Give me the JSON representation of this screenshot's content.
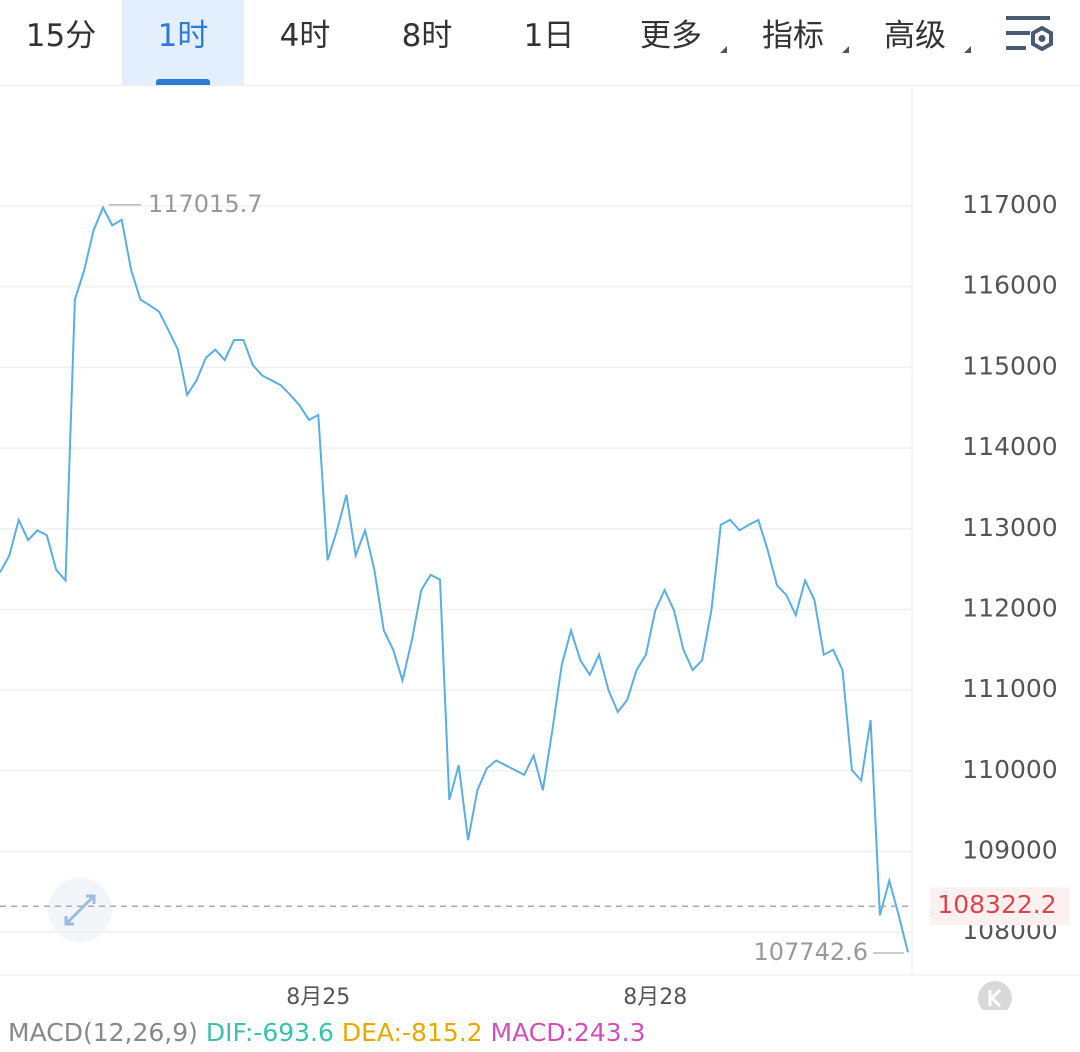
{
  "tabs": [
    "15分",
    "1时",
    "4时",
    "8时",
    "1日",
    "更多",
    "指标",
    "高级"
  ],
  "active_tab": 1,
  "chart_data": {
    "type": "line",
    "categories": [
      null,
      null,
      null,
      null,
      null,
      null,
      null,
      null,
      null,
      null,
      null,
      null,
      null,
      null,
      null,
      null,
      null,
      null,
      null,
      null,
      null,
      null,
      null,
      null,
      null,
      null,
      null,
      null,
      null,
      null,
      null,
      null,
      null,
      null,
      "8月25",
      null,
      null,
      null,
      null,
      null,
      null,
      null,
      null,
      null,
      null,
      null,
      null,
      null,
      null,
      null,
      null,
      null,
      null,
      null,
      null,
      null,
      null,
      null,
      null,
      null,
      null,
      null,
      null,
      null,
      null,
      null,
      null,
      null,
      null,
      null,
      "8月28",
      null,
      null,
      null,
      null,
      null,
      null,
      null,
      null,
      null,
      null,
      null,
      null,
      null,
      null,
      null,
      null,
      null,
      null,
      null,
      null,
      null,
      null,
      null,
      null,
      null,
      null,
      null
    ],
    "values": [
      112460,
      112670,
      113110,
      112860,
      112980,
      112920,
      112490,
      112360,
      115840,
      116210,
      116700,
      116980,
      116760,
      116830,
      116210,
      115840,
      115770,
      115690,
      115460,
      115220,
      114660,
      114840,
      115120,
      115220,
      115090,
      115340,
      115340,
      115030,
      114900,
      114840,
      114780,
      114660,
      114530,
      114350,
      114410,
      112610,
      112980,
      113420,
      112670,
      112980,
      112490,
      111740,
      111500,
      111120,
      111620,
      112240,
      112430,
      112370,
      109640,
      110070,
      109140,
      109760,
      110030,
      110130,
      110070,
      110010,
      109950,
      110190,
      109760,
      110500,
      111310,
      111740,
      111370,
      111190,
      111440,
      111000,
      110730,
      110880,
      111250,
      111440,
      111990,
      112240,
      111990,
      111500,
      111250,
      111370,
      111990,
      113050,
      113110,
      112980,
      113050,
      113110,
      112740,
      112300,
      112180,
      111930,
      112360,
      112120,
      111440,
      111500,
      111250,
      110010,
      109880,
      110630,
      108210,
      108640,
      108210,
      107750
    ],
    "color": "#5aaee0",
    "ylim": [
      107470,
      118500
    ],
    "yticks": [
      108000,
      109000,
      110000,
      111000,
      112000,
      113000,
      114000,
      115000,
      116000,
      117000
    ],
    "grid": true,
    "high": 117015.7,
    "low": 107742.6,
    "last_price": 108322.2
  },
  "indicator": {
    "name": "MACD(12,26,9)",
    "dif": "DIF:-693.6",
    "dea": "DEA:-815.2",
    "macd": "MACD:243.3"
  }
}
